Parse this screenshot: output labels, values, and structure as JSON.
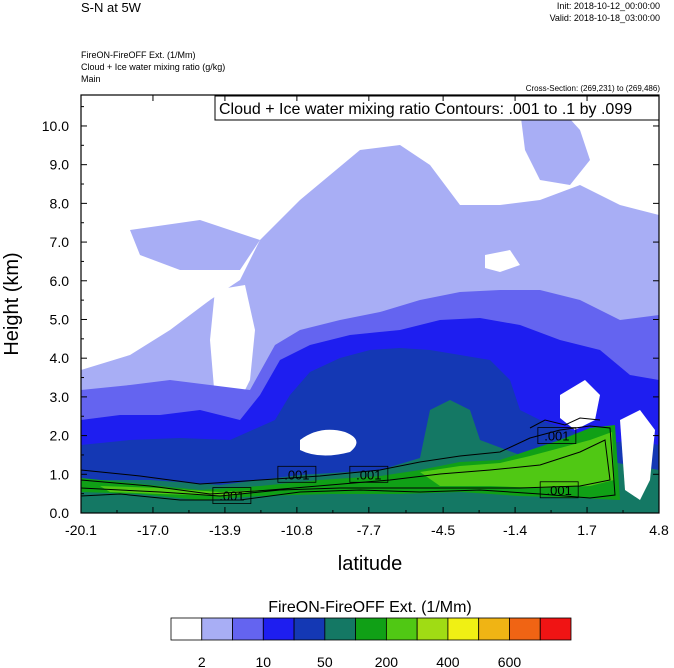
{
  "header": {
    "title": "S-N at 5W",
    "init": "Init: 2018-10-12_00:00:00",
    "valid": "Valid: 2018-10-18_03:00:00",
    "line1": "FireON-FireOFF Ext.   (1/Mm)",
    "line2": "Cloud + Ice water mixing ratio   (g/kg)",
    "line3": "Main",
    "cross_section": "Cross-Section: (269,231) to (269,486)"
  },
  "chart_data": {
    "type": "heatmap",
    "title": "S-N at 5W",
    "xlabel": "latitude",
    "ylabel": "Height (km)",
    "xlim": [
      -20.1,
      4.8
    ],
    "ylim": [
      0.0,
      10.8
    ],
    "x_ticks": [
      "-20.1",
      "-17.0",
      "-13.9",
      "-10.8",
      "-7.7",
      "-4.5",
      "-1.4",
      "1.7",
      "4.8"
    ],
    "y_ticks": [
      "0.0",
      "1.0",
      "2.0",
      "3.0",
      "4.0",
      "5.0",
      "6.0",
      "7.0",
      "8.0",
      "9.0",
      "10.0"
    ],
    "contour_title": "Cloud + Ice water mixing ratio Contours: .001 to .1 by .099",
    "contour_labels": [
      {
        "text": ".001",
        "x": -13.6,
        "y": 0.45
      },
      {
        "text": ".001",
        "x": -10.8,
        "y": 1.0
      },
      {
        "text": ".001",
        "x": -7.7,
        "y": 1.0
      },
      {
        "text": ".001",
        "x": 0.4,
        "y": 2.0
      },
      {
        "text": ".001",
        "x": 0.5,
        "y": 0.6
      }
    ],
    "colorbar": {
      "title": "FireON-FireOFF Ext.  (1/Mm)",
      "colors": [
        "#ffffff",
        "#a8aef5",
        "#6464f0",
        "#1e1ef0",
        "#1438b4",
        "#147864",
        "#10a016",
        "#50c814",
        "#a0dc14",
        "#f0f014",
        "#f0b414",
        "#f06414",
        "#f01414"
      ],
      "labels": [
        "2",
        "10",
        "50",
        "200",
        "400",
        "600"
      ]
    }
  }
}
